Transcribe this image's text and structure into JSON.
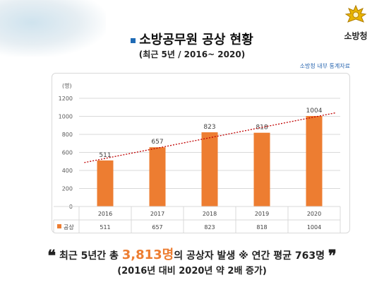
{
  "header": {
    "title": "소방공무원 공상 현황",
    "subtitle": "(최근 5년 / 2016~ 2020)",
    "source": "소방청 내부 통계자료",
    "logo_text": "소방청"
  },
  "chart_data": {
    "type": "bar",
    "categories": [
      "2016",
      "2017",
      "2018",
      "2019",
      "2020"
    ],
    "series": [
      {
        "name": "공상",
        "values": [
          511,
          657,
          823,
          818,
          1004
        ],
        "color": "#ed7d31"
      }
    ],
    "data_labels": [
      "511",
      "657",
      "823",
      "818",
      "1004"
    ],
    "ylabel": "(명)",
    "ylim": [
      0,
      1200
    ],
    "yticks": [
      "0",
      "200",
      "400",
      "600",
      "800",
      "1000",
      "1200"
    ],
    "trendline": "linear",
    "trend_color": "#c00000",
    "grid": true,
    "data_table": true
  },
  "summary": {
    "open_quote": "❝",
    "close_quote": "❞",
    "part1": "최근 5년간 총 ",
    "highlight": "3,813명",
    "part2": "의 공상자 발생  ※ 연간 평균 763명",
    "sub": "(2016년 대비 2020년 약 2배 증가)"
  },
  "colors": {
    "accent": "#ed7d31",
    "title_square": "#1f6bb5",
    "source_text": "#2a67b0"
  }
}
